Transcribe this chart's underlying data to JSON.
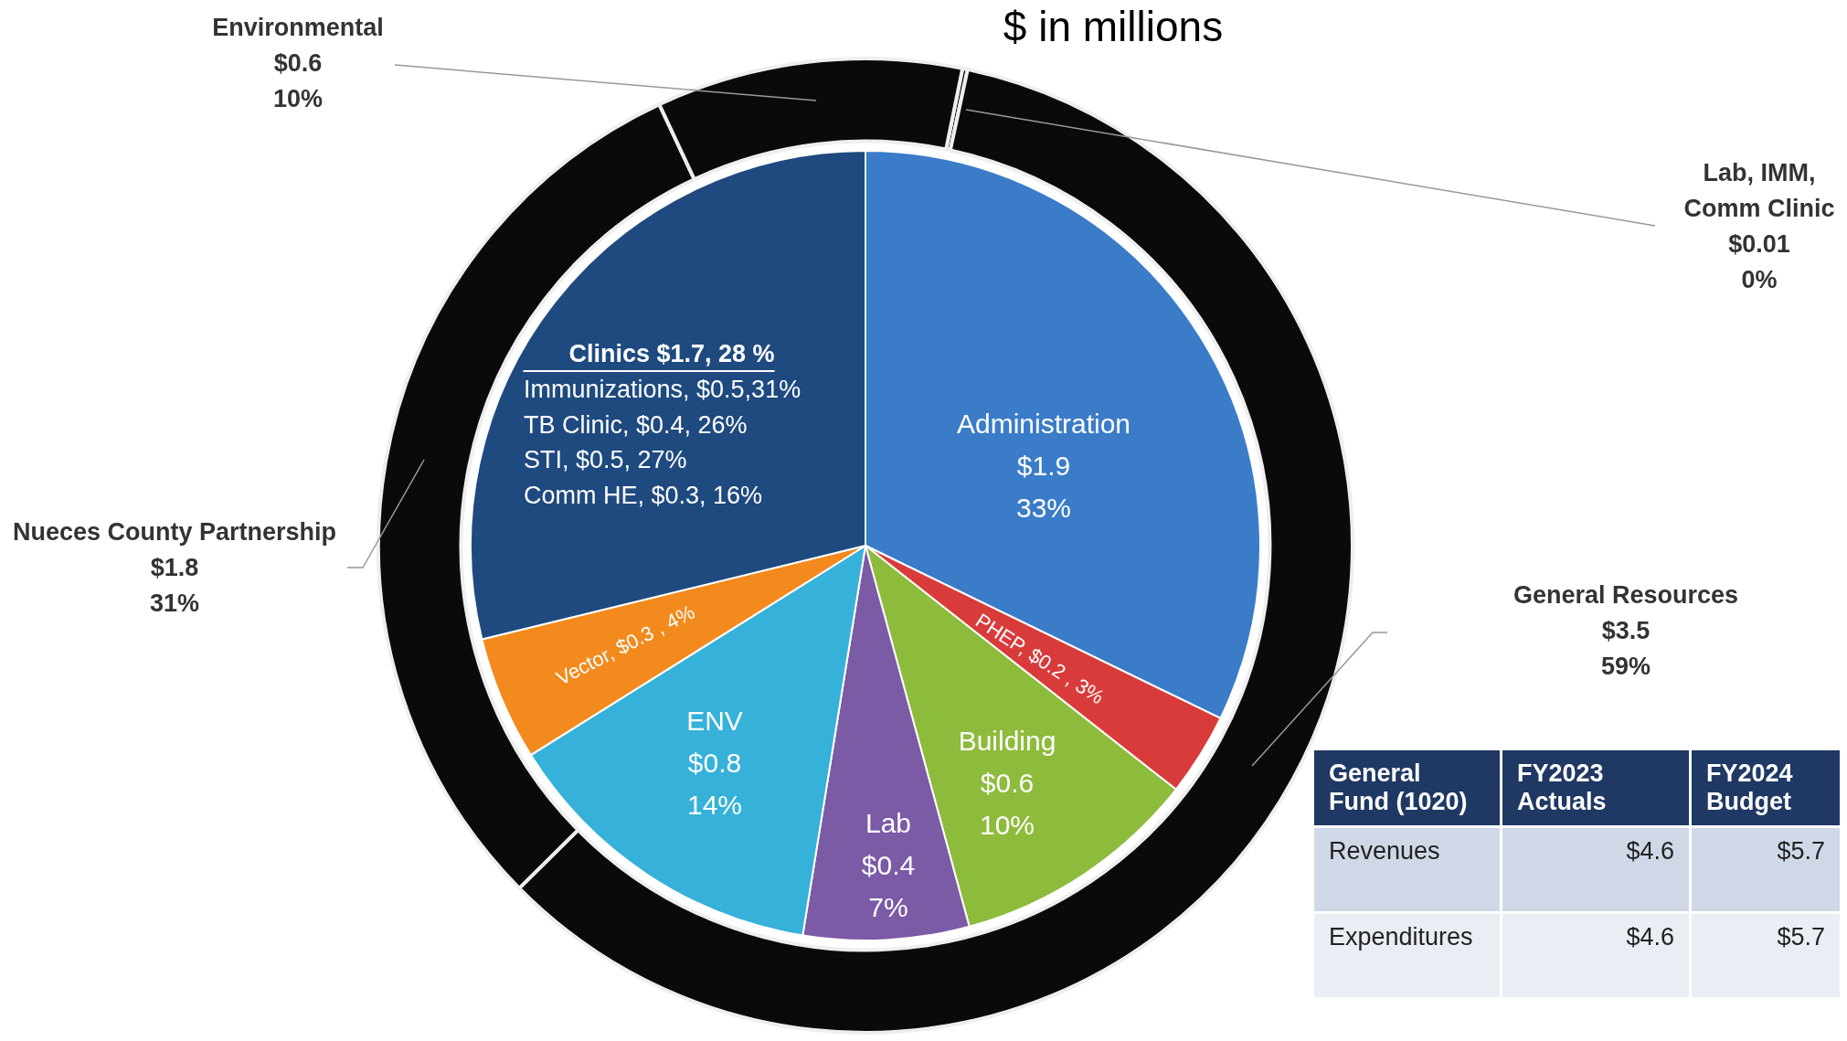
{
  "chart_data": [
    {
      "type": "donut",
      "title": "$ in millions",
      "categories": [
        "Lab, IMM, Comm Clinic",
        "General Resources",
        "Nueces County Partnership",
        "Environmental"
      ],
      "values": [
        0.01,
        3.5,
        1.8,
        0.6
      ],
      "colors": [
        "#0a0a0a",
        "#0a0a0a",
        "#0a0a0a",
        "#0a0a0a"
      ],
      "value_labels": [
        "$0.01\n0%",
        "$3.5\n59%",
        "$1.8\n31%",
        "$0.6\n10%"
      ],
      "legend": false
    },
    {
      "type": "pie",
      "categories": [
        "Administration",
        "PHEP",
        "Building",
        "Lab",
        "ENV",
        "Vector",
        "Clinics"
      ],
      "values": [
        1.9,
        0.2,
        0.6,
        0.4,
        0.8,
        0.3,
        1.7
      ],
      "colors": [
        "#3b7cc9",
        "#d93b3b",
        "#8dbb3c",
        "#7b5aa6",
        "#36b1d9",
        "#f28a1e",
        "#1f4a80"
      ],
      "value_labels": [
        "$1.9\n33%",
        "$0.2 , 3%",
        "$0.6\n10%",
        "$0.4\n7%",
        "$0.8\n14%",
        "$0.3 , 4%",
        "$1.7, 28 %"
      ],
      "annotations": [
        "Immunizations, $0.5,31%",
        "TB Clinic, $0.4, 26%",
        "STI, $0.5, 27%",
        "Comm HE, $0.3, 16%"
      ],
      "legend": false
    },
    {
      "type": "other",
      "title": "General Fund (1020)",
      "categories": [
        "FY2023 Actuals",
        "FY2024 Budget"
      ],
      "y_categories": [
        "Revenues",
        "Expenditures"
      ],
      "cell_labels": [
        [
          "$4.6",
          "$5.7"
        ],
        [
          "$4.6",
          "$5.7"
        ]
      ]
    }
  ]
}
